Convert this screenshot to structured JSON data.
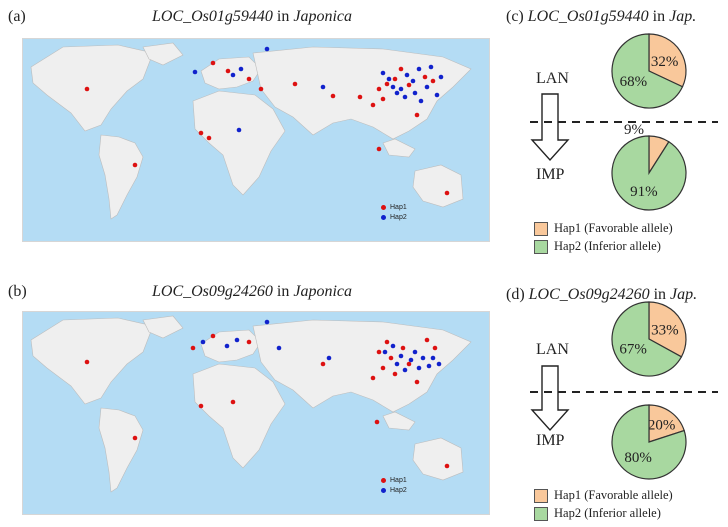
{
  "colors": {
    "hap1": "#f9c89b",
    "hap2": "#a8d8a0",
    "dot_hap1": "#dd1111",
    "dot_hap2": "#1122cc",
    "ocean": "#b4dcf4",
    "land": "#efefef"
  },
  "maps": [
    {
      "label": "(a)",
      "gene": "LOC_Os01g59440",
      "connector": " in ",
      "subspecies": "Japonica",
      "legend": [
        "Hap1",
        "Hap2"
      ]
    },
    {
      "label": "(b)",
      "gene": "LOC_Os09g24260",
      "connector": " in ",
      "subspecies": "Japonica",
      "legend": [
        "Hap1",
        "Hap2"
      ]
    }
  ],
  "pies": [
    {
      "label": "(c)",
      "gene": "LOC_Os01g59440",
      "connector": " in ",
      "subspecies": "Jap.",
      "stage_top": "LAN",
      "stage_bottom": "IMP"
    },
    {
      "label": "(d)",
      "gene": "LOC_Os09g24260",
      "connector": " in ",
      "subspecies": "Jap.",
      "stage_top": "LAN",
      "stage_bottom": "IMP"
    }
  ],
  "legend": {
    "hap1": "Hap1 (Favorable allele)",
    "hap2": "Hap2 (Inferior allele)"
  },
  "chart_data": [
    {
      "type": "pie",
      "title": "LOC_Os01g59440 in Jap. — LAN",
      "categories": [
        "Hap1",
        "Hap2"
      ],
      "values": [
        32,
        68
      ],
      "labels": [
        "32%",
        "68%"
      ]
    },
    {
      "type": "pie",
      "title": "LOC_Os01g59440 in Jap. — IMP",
      "categories": [
        "Hap1",
        "Hap2"
      ],
      "values": [
        9,
        91
      ],
      "labels": [
        "9%",
        "91%"
      ]
    },
    {
      "type": "pie",
      "title": "LOC_Os09g24260 in Jap. — LAN",
      "categories": [
        "Hap1",
        "Hap2"
      ],
      "values": [
        33,
        67
      ],
      "labels": [
        "33%",
        "67%"
      ]
    },
    {
      "type": "pie",
      "title": "LOC_Os09g24260 in Jap. — IMP",
      "categories": [
        "Hap1",
        "Hap2"
      ],
      "values": [
        20,
        80
      ],
      "labels": [
        "20%",
        "80%"
      ]
    }
  ]
}
